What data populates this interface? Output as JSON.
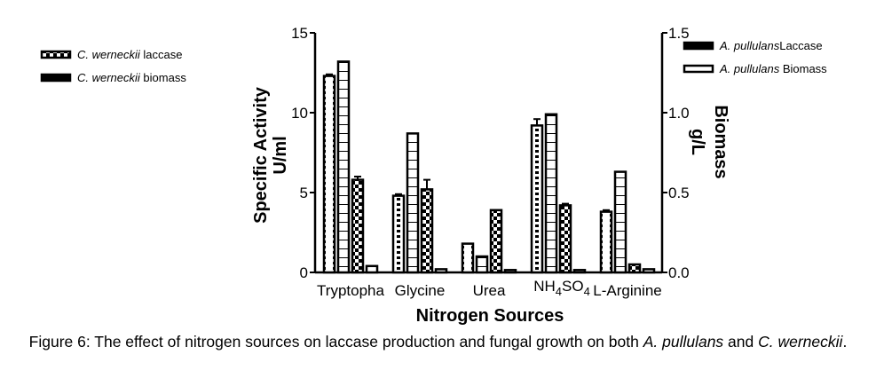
{
  "chart_data": {
    "type": "bar",
    "xlabel": "Nitrogen Sources",
    "ylabel_left": [
      "Specific Activity",
      "U/ml"
    ],
    "ylabel_right": [
      "Biomass",
      "g/L"
    ],
    "ylim_left": [
      0,
      15
    ],
    "ylim_right": [
      0,
      1.5
    ],
    "yticks_left": [
      "0",
      "5",
      "10",
      "15"
    ],
    "yticks_right": [
      "0.0",
      "0.5",
      "1.0",
      "1.5"
    ],
    "categories": [
      "Tryptopha",
      "Glycine",
      "Urea",
      "NH4SO4",
      "L-Arginine"
    ],
    "legend_left": [
      {
        "species": "C. werneckii",
        "text": " laccase"
      },
      {
        "species": "C. werneckii",
        "text": " biomass"
      }
    ],
    "legend_right": [
      {
        "species": "A. pullulans",
        "text": "Laccase"
      },
      {
        "species": "A. pullulans",
        "text": " Biomass"
      }
    ],
    "series": [
      {
        "name": "A. pullulans Laccase",
        "axis": "left",
        "pattern": "dash",
        "values": [
          12.3,
          4.8,
          1.8,
          9.2,
          3.8
        ],
        "errors": [
          0.1,
          0.1,
          0.05,
          0.4,
          0.1
        ]
      },
      {
        "name": "A. pullulans Biomass",
        "axis": "left",
        "pattern": "grid",
        "values": [
          13.2,
          8.7,
          1.0,
          9.9,
          6.3
        ],
        "errors": [
          0,
          0,
          0,
          0,
          0
        ]
      },
      {
        "name": "C. werneckii laccase",
        "axis": "left",
        "pattern": "checker",
        "values": [
          5.8,
          5.2,
          3.9,
          4.2,
          0.5
        ],
        "errors": [
          0.2,
          0.6,
          0.05,
          0.1,
          0
        ]
      },
      {
        "name": "C. werneckii biomass",
        "axis": "left",
        "pattern": "solid-small",
        "values": [
          0.4,
          0.2,
          0.15,
          0.15,
          0.2
        ],
        "errors": [
          0,
          0,
          0,
          0,
          0
        ]
      }
    ]
  },
  "caption": {
    "prefix": "Figure 6: The effect of nitrogen sources on laccase production and fungal growth on both ",
    "sp1": "A. pullulans",
    "mid": " and ",
    "sp2": "C. werneckii",
    "suffix": "."
  }
}
